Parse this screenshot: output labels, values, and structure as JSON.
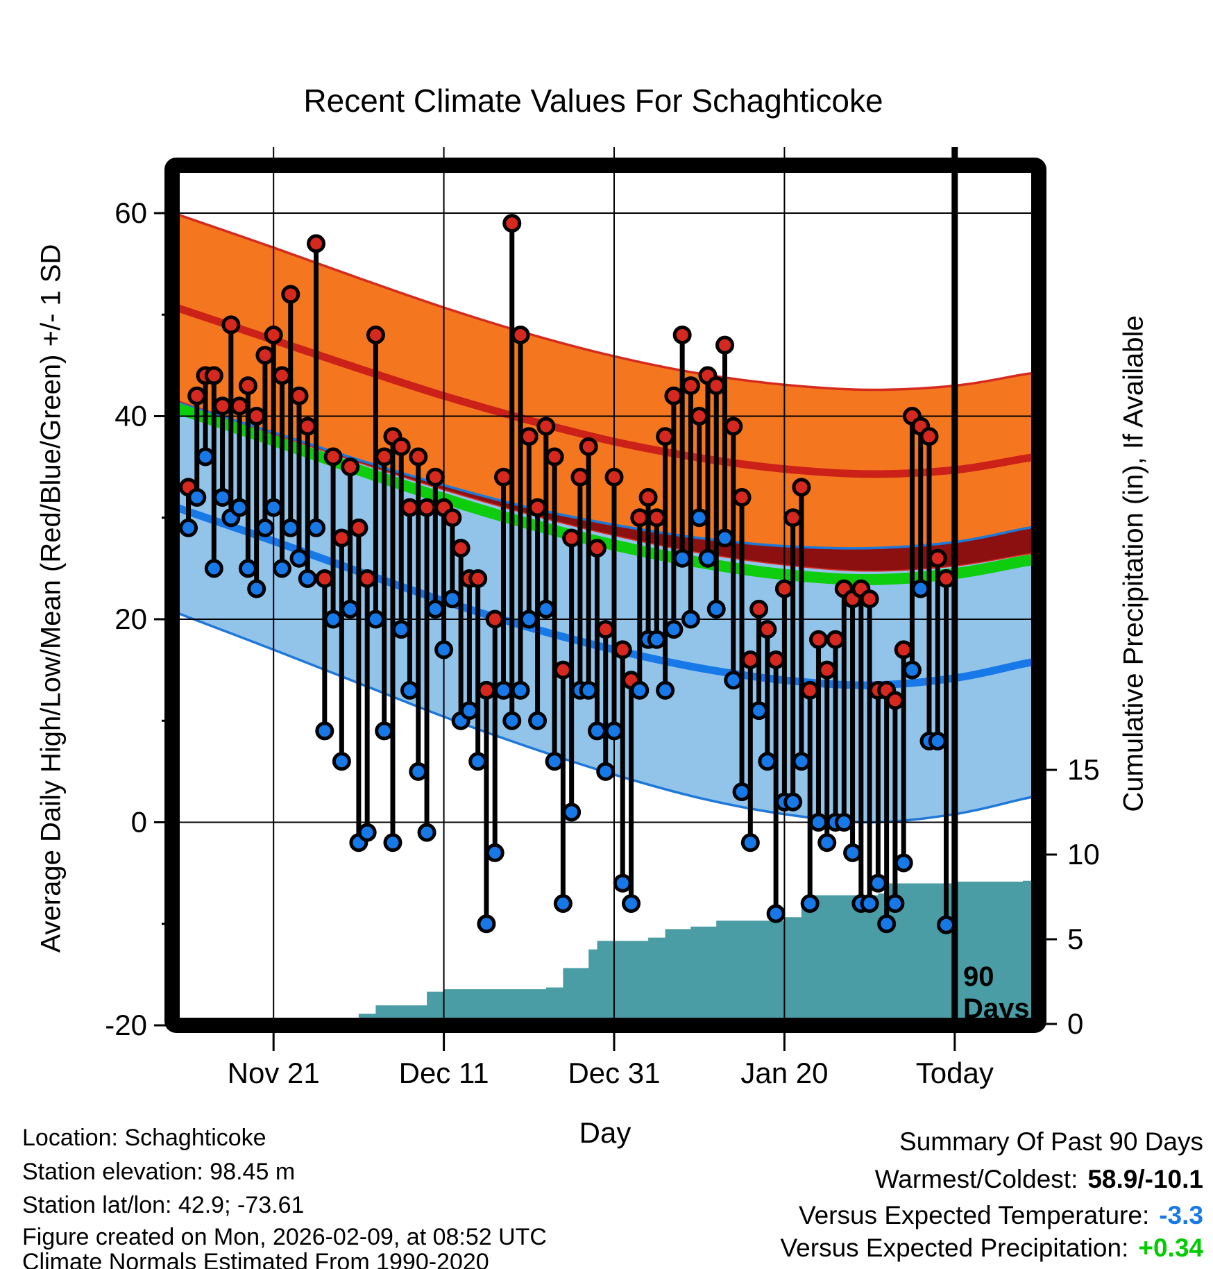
{
  "title": "Recent Climate Values For Schaghticoke",
  "axes": {
    "left": {
      "label": "Average Daily High/Low/Mean (Red/Blue/Green) +/- 1 SD",
      "ticks": [
        60,
        40,
        20,
        0,
        -20
      ],
      "minor_ticks": [
        50,
        30,
        10,
        -10
      ]
    },
    "right": {
      "label": "Cumulative Precipitation (in), If Available",
      "ticks": [
        15,
        10,
        5,
        0
      ]
    },
    "x": {
      "label": "Day",
      "ticks": [
        {
          "label": "Nov 21",
          "day": 10
        },
        {
          "label": "Dec 11",
          "day": 30
        },
        {
          "label": "Dec 31",
          "day": 50
        },
        {
          "label": "Jan 20",
          "day": 70
        },
        {
          "label": "Today",
          "day": 90
        }
      ]
    }
  },
  "annotations": {
    "period_label_line1": "90",
    "period_label_line2": "Days",
    "period_day": 90
  },
  "footer": {
    "location": "Location: Schaghticoke",
    "elevation": "Station elevation: 98.45 m",
    "latlon": "Station lat/lon: 42.9; -73.61",
    "created": "Figure created on Mon, 2026-02-09, at 08:52 UTC",
    "normals": "Climate Normals Estimated From 1990-2020"
  },
  "summary": {
    "heading": "Summary Of Past 90 Days",
    "warmest_coldest_label": "Warmest/Coldest:",
    "warmest_coldest_value": "58.9/-10.1",
    "vs_temp_label": "Versus Expected Temperature:",
    "vs_temp_value": "-3.3",
    "vs_precip_label": "Versus Expected Precipitation:",
    "vs_precip_value": "+0.34"
  },
  "colors": {
    "orange_band": "#F4771F",
    "red_edge": "#D52B1E",
    "red_mean_line": "#CB2118",
    "maroon_overlap": "#8C1010",
    "green_mean_line": "#0ECC0E",
    "light_blue_band": "#92C4EA",
    "blue_edge": "#1E78D7",
    "blue_mean_line": "#1778E8",
    "red_dot": "#D6281E",
    "blue_dot": "#1778E8",
    "teal_precip": "#4A9CA5",
    "vs_temp_value_color": "#1778E8",
    "vs_precip_value_color": "#00CC00",
    "black": "#000000"
  },
  "chart_data": {
    "type": "composite",
    "x_unit": "day_index_0_to_90_today",
    "today_day": 90,
    "temp_axis_f": {
      "min": -20,
      "max": 64,
      "gridlines": [
        60,
        40,
        20,
        0
      ]
    },
    "precip_axis_in": {
      "min": 0,
      "ticks": [
        0,
        5,
        10,
        15
      ]
    },
    "daily": {
      "high_f": [
        33,
        42,
        44,
        44,
        41,
        49,
        41,
        43,
        40,
        46,
        48,
        44,
        52,
        42,
        39,
        57,
        24,
        36,
        28,
        35,
        29,
        24,
        48,
        36,
        38,
        37,
        31,
        36,
        31,
        34,
        31,
        30,
        27,
        24,
        24,
        13,
        20,
        34,
        59,
        48,
        38,
        31,
        39,
        36,
        15,
        28,
        34,
        37,
        27,
        19,
        34,
        17,
        14,
        30,
        32,
        30,
        38,
        42,
        48,
        43,
        40,
        44,
        43,
        47,
        39,
        32,
        16,
        21,
        19,
        16,
        23,
        30,
        33,
        13,
        18,
        15,
        18,
        23,
        22,
        23,
        22,
        13,
        13,
        12,
        17,
        40,
        39,
        38,
        26,
        24
      ],
      "low_f": [
        29,
        32,
        36,
        25,
        32,
        30,
        31,
        25,
        23,
        29,
        31,
        25,
        29,
        26,
        24,
        29,
        9,
        20,
        6,
        21,
        -2,
        -1,
        20,
        9,
        -2,
        19,
        13,
        5,
        -1,
        21,
        17,
        22,
        10,
        11,
        6,
        -10,
        -3,
        13,
        10,
        13,
        20,
        10,
        21,
        6,
        -8,
        1,
        13,
        13,
        9,
        5,
        9,
        -6,
        -8,
        13,
        18,
        18,
        13,
        19,
        26,
        20,
        30,
        26,
        21,
        28,
        14,
        3,
        -2,
        11,
        6,
        -9,
        2,
        2,
        6,
        -8,
        0,
        -2,
        0,
        0,
        -3,
        -8,
        -8,
        -6,
        -10,
        -8,
        -4,
        15,
        23,
        8,
        8,
        -10.1
      ]
    },
    "normals_sample_days": [
      0,
      10,
      20,
      30,
      40,
      50,
      60,
      70,
      80,
      90,
      98
    ],
    "normals": {
      "high_plus_sd": [
        59.5,
        56.6,
        53.6,
        50.7,
        48.1,
        45.9,
        44.2,
        43.1,
        42.6,
        43.0,
        44.1
      ],
      "high_mean": [
        50.3,
        47.5,
        44.7,
        42.0,
        39.6,
        37.5,
        35.9,
        34.8,
        34.3,
        34.7,
        35.8
      ],
      "high_minus_sd": [
        41.1,
        38.3,
        35.5,
        32.8,
        30.4,
        28.3,
        26.6,
        25.4,
        24.8,
        25.3,
        26.4
      ],
      "mean": [
        40.4,
        37.6,
        34.7,
        31.9,
        29.4,
        27.3,
        25.6,
        24.4,
        23.9,
        24.5,
        25.7
      ],
      "low_plus_sd": [
        41.0,
        38.4,
        35.7,
        33.2,
        31.0,
        29.3,
        28.0,
        27.2,
        27.0,
        27.6,
        28.9
      ],
      "low_mean": [
        30.6,
        27.7,
        24.7,
        21.8,
        19.2,
        17.0,
        15.2,
        14.0,
        13.5,
        14.2,
        15.6
      ],
      "low_minus_sd": [
        20.2,
        17.0,
        13.7,
        10.4,
        7.4,
        4.7,
        2.4,
        0.8,
        0.0,
        0.8,
        2.3
      ]
    },
    "precip_cumulative_steps": {
      "day": [
        0,
        12,
        13,
        20,
        22,
        28,
        30,
        42,
        44,
        47,
        48,
        54,
        56,
        59,
        62,
        70,
        72,
        73,
        81,
        82,
        90,
        98
      ],
      "inches": [
        0,
        0.05,
        0.1,
        0.6,
        1.1,
        1.9,
        2.05,
        2.15,
        3.3,
        4.4,
        4.9,
        5.1,
        5.6,
        5.75,
        6.1,
        6.3,
        7.0,
        7.6,
        7.7,
        8.3,
        8.4,
        8.45
      ]
    }
  }
}
